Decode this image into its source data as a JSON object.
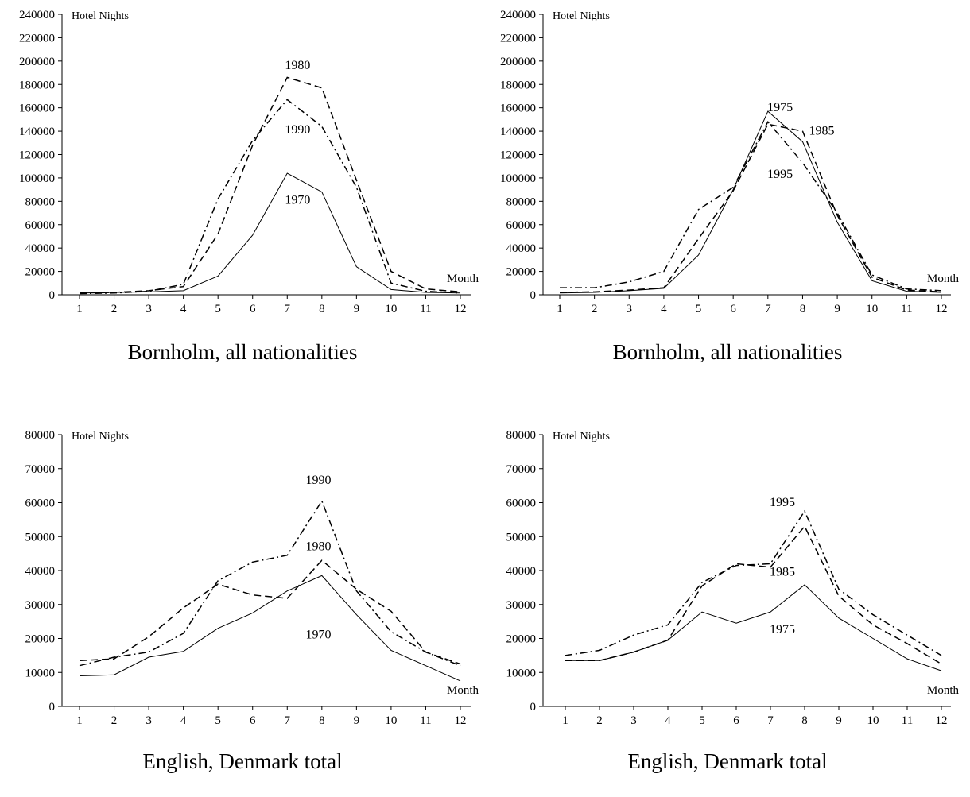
{
  "chart_data": [
    {
      "type": "line",
      "title": "Bornholm, all nationalities",
      "ylabel": "Hotel Nights",
      "xlabel": "Month",
      "x": [
        1,
        2,
        3,
        4,
        5,
        6,
        7,
        8,
        9,
        10,
        11,
        12
      ],
      "ylim": [
        0,
        240000
      ],
      "yticks": [
        0,
        20000,
        40000,
        60000,
        80000,
        100000,
        120000,
        140000,
        160000,
        180000,
        200000,
        220000,
        240000
      ],
      "series": [
        {
          "name": "1970",
          "style": "solid",
          "values": [
            1500,
            2000,
            2500,
            3500,
            16000,
            51000,
            104000,
            88000,
            24000,
            4500,
            2000,
            1500
          ]
        },
        {
          "name": "1980",
          "style": "dashed",
          "values": [
            1500,
            2000,
            3500,
            7000,
            52000,
            128000,
            186000,
            177000,
            98000,
            20000,
            5000,
            2500
          ]
        },
        {
          "name": "1990",
          "style": "dashdot",
          "values": [
            1000,
            1500,
            3000,
            9000,
            82000,
            132000,
            167000,
            144000,
            92000,
            10000,
            3000,
            1500
          ]
        }
      ],
      "annotations": [
        "1980",
        "1990",
        "1970"
      ]
    },
    {
      "type": "line",
      "title": "Bornholm, all nationalities",
      "ylabel": "Hotel Nights",
      "xlabel": "Month",
      "x": [
        1,
        2,
        3,
        4,
        5,
        6,
        7,
        8,
        9,
        10,
        11,
        12
      ],
      "ylim": [
        0,
        240000
      ],
      "yticks": [
        0,
        20000,
        40000,
        60000,
        80000,
        100000,
        120000,
        140000,
        160000,
        180000,
        200000,
        220000,
        240000
      ],
      "series": [
        {
          "name": "1975",
          "style": "solid",
          "values": [
            1500,
            2000,
            3500,
            5500,
            34000,
            90000,
            157000,
            131000,
            62000,
            12000,
            3000,
            2000
          ]
        },
        {
          "name": "1985",
          "style": "dashed",
          "values": [
            2000,
            2500,
            4000,
            6000,
            48000,
            89000,
            146000,
            140000,
            68000,
            15000,
            4000,
            2500
          ]
        },
        {
          "name": "1995",
          "style": "dashdot",
          "values": [
            6000,
            6000,
            11000,
            20000,
            73000,
            92000,
            148000,
            113000,
            70000,
            17000,
            5000,
            3500
          ]
        }
      ],
      "annotations": [
        "1975",
        "1985",
        "1995"
      ]
    },
    {
      "type": "line",
      "title": "English, Denmark total",
      "ylabel": "Hotel Nights",
      "xlabel": "Month",
      "x": [
        1,
        2,
        3,
        4,
        5,
        6,
        7,
        8,
        9,
        10,
        11,
        12
      ],
      "ylim": [
        0,
        80000
      ],
      "yticks": [
        0,
        10000,
        20000,
        30000,
        40000,
        50000,
        60000,
        70000,
        80000
      ],
      "series": [
        {
          "name": "1970",
          "style": "solid",
          "values": [
            9000,
            9300,
            14500,
            16200,
            23000,
            27500,
            34000,
            38500,
            27000,
            16500,
            12000,
            7500
          ]
        },
        {
          "name": "1980",
          "style": "dashed",
          "values": [
            13500,
            14000,
            20500,
            29000,
            36000,
            32800,
            31800,
            43000,
            34500,
            28000,
            16000,
            12500
          ]
        },
        {
          "name": "1990",
          "style": "dashdot",
          "values": [
            12000,
            14500,
            16000,
            21500,
            37000,
            42500,
            44500,
            60500,
            34000,
            22000,
            16000,
            12000
          ]
        }
      ],
      "annotations": [
        "1990",
        "1980",
        "1970"
      ]
    },
    {
      "type": "line",
      "title": "English, Denmark total",
      "ylabel": "Hotel Nights",
      "xlabel": "Month",
      "x": [
        1,
        2,
        3,
        4,
        5,
        6,
        7,
        8,
        9,
        10,
        11,
        12
      ],
      "ylim": [
        0,
        80000
      ],
      "yticks": [
        0,
        10000,
        20000,
        30000,
        40000,
        50000,
        60000,
        70000,
        80000
      ],
      "series": [
        {
          "name": "1975",
          "style": "solid",
          "values": [
            13500,
            13500,
            16000,
            19500,
            27800,
            24500,
            27800,
            35800,
            26000,
            20000,
            14000,
            10500
          ]
        },
        {
          "name": "1985",
          "style": "dashed",
          "values": [
            13500,
            13500,
            16000,
            19500,
            35500,
            42000,
            41000,
            53000,
            32500,
            24000,
            18500,
            12500
          ]
        },
        {
          "name": "1995",
          "style": "dashdot",
          "values": [
            15000,
            16500,
            21000,
            24000,
            36500,
            41500,
            42000,
            57500,
            34500,
            27000,
            21000,
            15000
          ]
        }
      ],
      "annotations": [
        "1995",
        "1985",
        "1975"
      ]
    }
  ]
}
